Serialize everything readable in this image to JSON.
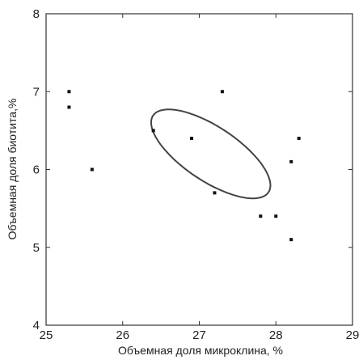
{
  "chart_data": {
    "type": "scatter",
    "title": "",
    "xlabel": "Объемная доля микроклина, %",
    "ylabel": "Объемная доля биотита,%",
    "xlim": [
      25,
      29
    ],
    "ylim": [
      4,
      8
    ],
    "x_ticks": [
      "25",
      "26",
      "27",
      "28",
      "29"
    ],
    "y_ticks": [
      "4",
      "5",
      "6",
      "7",
      "8"
    ],
    "grid": false,
    "legend": "none",
    "colors": {
      "frame": "#333333",
      "marker": "#111111",
      "ellipse": "#444444"
    },
    "points": [
      {
        "x": 25.3,
        "y": 7.0
      },
      {
        "x": 25.3,
        "y": 6.8
      },
      {
        "x": 25.6,
        "y": 6.0
      },
      {
        "x": 26.4,
        "y": 6.5
      },
      {
        "x": 26.9,
        "y": 6.4
      },
      {
        "x": 27.3,
        "y": 7.0
      },
      {
        "x": 27.2,
        "y": 5.7
      },
      {
        "x": 27.8,
        "y": 5.4
      },
      {
        "x": 28.0,
        "y": 5.4
      },
      {
        "x": 28.2,
        "y": 6.1
      },
      {
        "x": 28.3,
        "y": 6.4
      },
      {
        "x": 28.2,
        "y": 5.1
      }
    ],
    "ellipse": {
      "center_x": 27.15,
      "center_y": 6.2,
      "semi_major": 0.9,
      "semi_minor": 0.35,
      "angle_deg": -33
    }
  }
}
